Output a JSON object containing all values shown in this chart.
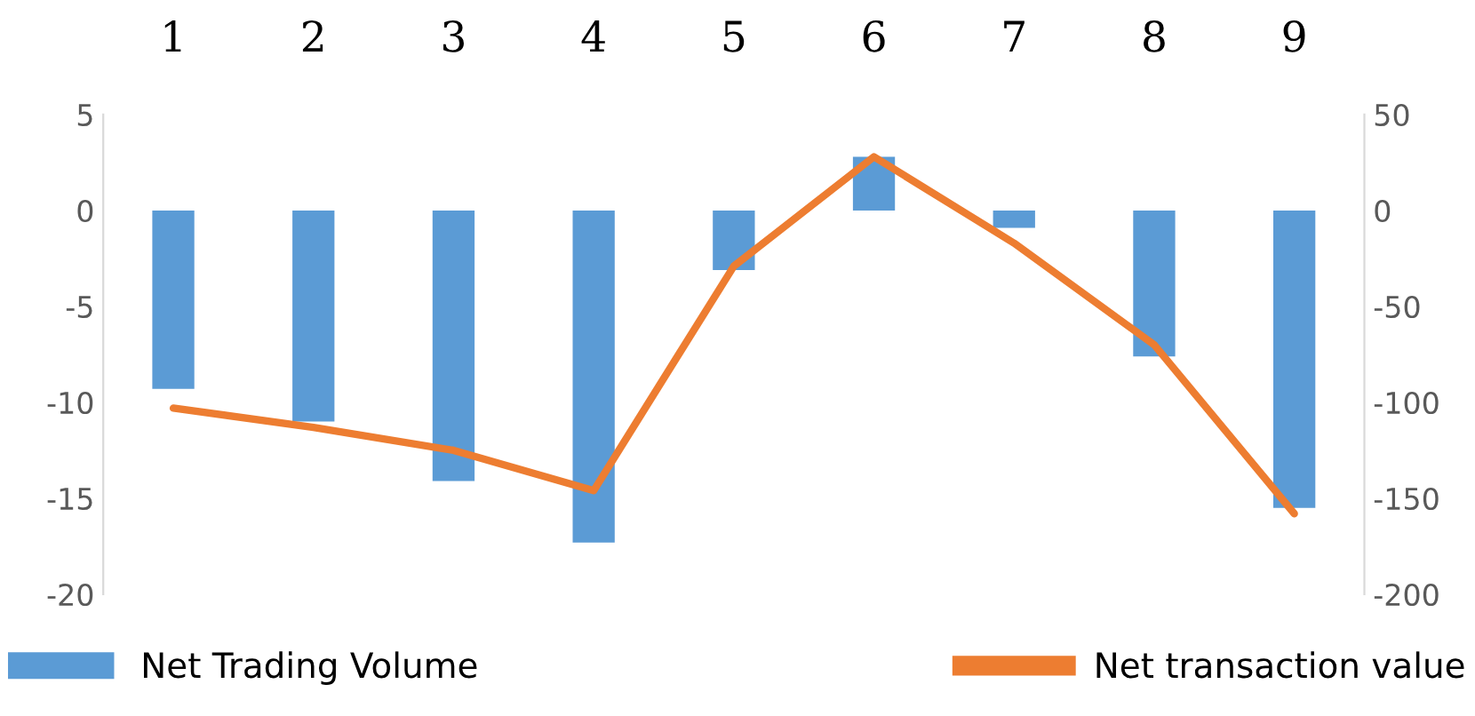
{
  "chart_data": {
    "type": "bar",
    "categories": [
      "1",
      "2",
      "3",
      "4",
      "5",
      "6",
      "7",
      "8",
      "9"
    ],
    "series": [
      {
        "name": "Net Trading Volume",
        "color": "#5b9bd5",
        "values": [
          -9.3,
          -11.0,
          -14.1,
          -17.3,
          -3.1,
          2.8,
          -0.9,
          -7.6,
          -15.5
        ]
      },
      {
        "name": "Net transaction value",
        "color": "#ed7d31",
        "type": "line",
        "axis": "y2",
        "values": [
          -103,
          -113,
          -125,
          -146,
          -29,
          28,
          -17,
          -70,
          -158
        ]
      }
    ],
    "ylim": [
      -20,
      5
    ],
    "yticks": [
      -20,
      -15,
      -10,
      -5,
      0,
      5
    ],
    "y2lim": [
      -200,
      50
    ],
    "y2ticks": [
      -200,
      -150,
      -100,
      -50,
      0,
      50
    ],
    "grid": false,
    "legend": "bottom",
    "marker": "none",
    "line_style": "solid"
  }
}
